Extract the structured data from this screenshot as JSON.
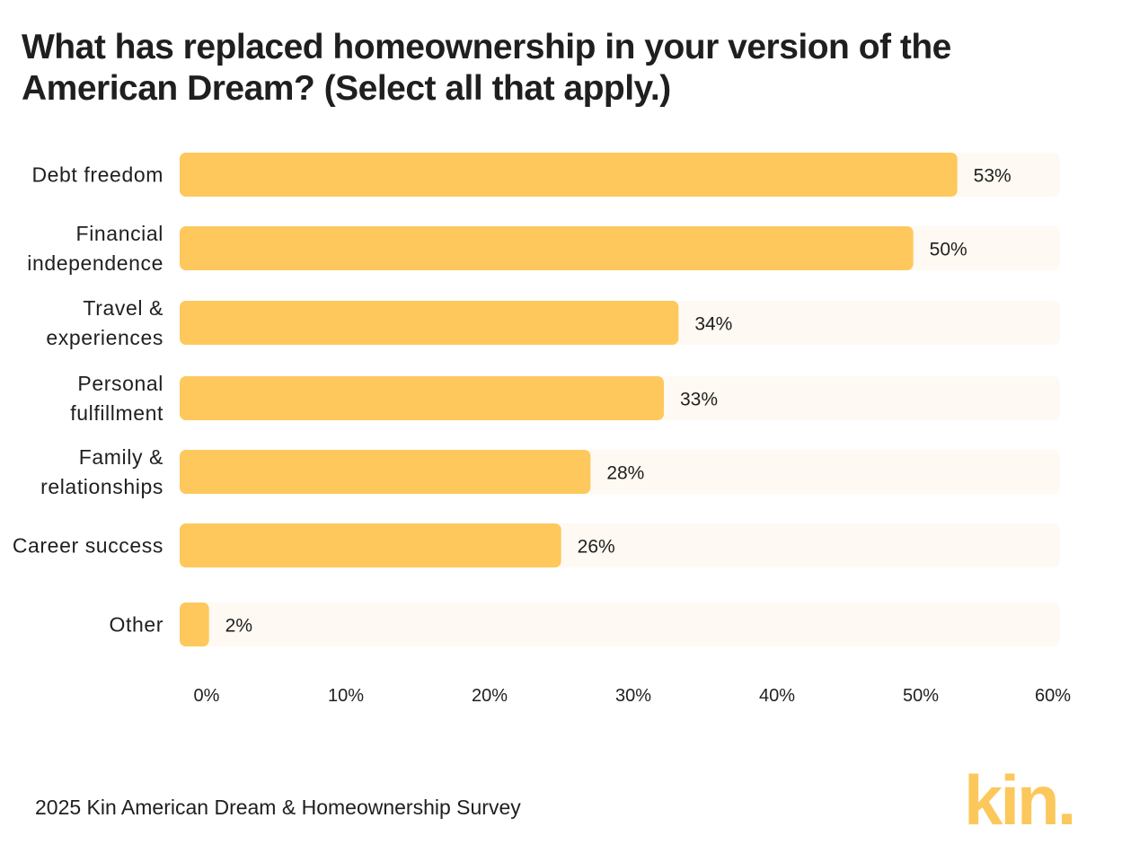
{
  "title": "What has replaced homeownership in your version of the American Dream? (Select all that apply.)",
  "source": "2025 Kin American Dream & Homeownership Survey",
  "logo": {
    "text": "kin.",
    "color": "#FCC85C"
  },
  "colors": {
    "bar": "#FEC85C",
    "track": "#FEF9F2",
    "text": "#1F1F1F"
  },
  "chart_data": {
    "type": "bar",
    "orientation": "horizontal",
    "title": "What has replaced homeownership in your version of the American Dream? (Select all that apply.)",
    "categories": [
      [
        "Debt freedom"
      ],
      [
        "Financial",
        "independence"
      ],
      [
        "Travel &",
        "experiences"
      ],
      [
        "Personal",
        "fulfillment"
      ],
      [
        "Family &",
        "relationships"
      ],
      [
        "Career success"
      ],
      [
        "Other"
      ]
    ],
    "values": [
      53,
      50,
      34,
      33,
      28,
      26,
      2
    ],
    "value_labels": [
      "53%",
      "50%",
      "34%",
      "33%",
      "28%",
      "26%",
      "2%"
    ],
    "xlim": [
      0,
      60
    ],
    "xticks": [
      0,
      10,
      20,
      30,
      40,
      50,
      60
    ],
    "xtick_labels": [
      "0%",
      "10%",
      "20%",
      "30%",
      "40%",
      "50%",
      "60%"
    ],
    "xlabel": "",
    "ylabel": "",
    "grid": false,
    "legend": "none"
  }
}
